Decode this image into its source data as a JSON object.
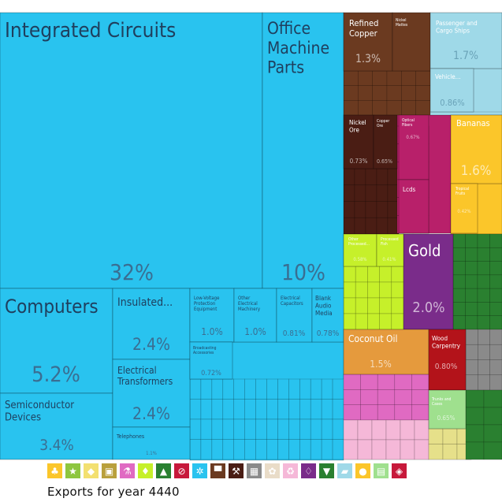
{
  "caption": "Exports for year 4440",
  "colors": {
    "machines": "#29c3ef",
    "metals": "#6b3a20",
    "transportation": "#9fd9e8",
    "minerals": "#4a1d14",
    "instruments": "#b8206a",
    "vegetable_products": "#fbc62a",
    "plastics": "#c6f02a",
    "precious_metals": "#7a2c8a",
    "animal_hides": "#2a8030",
    "foodstuffs": "#e59a3d",
    "wood_products": "#b3131a",
    "stone_and_glass": "#8a8a8a",
    "chemicals": "#e06ac2",
    "textiles": "#9fe08e",
    "paper_goods": "#e6e08a",
    "animal_products": "#f5b8d8"
  },
  "chart_data": {
    "type": "treemap",
    "title": "",
    "items": [
      {
        "name": "Integrated Circuits",
        "value": 32,
        "label": "32%",
        "category": "machines"
      },
      {
        "name": "Office Machine Parts",
        "value": 10,
        "label": "10%",
        "category": "machines"
      },
      {
        "name": "Computers",
        "value": 5.2,
        "label": "5.2%",
        "category": "machines"
      },
      {
        "name": "Semiconductor Devices",
        "value": 3.4,
        "label": "3.4%",
        "category": "machines"
      },
      {
        "name": "Insulated...",
        "value": 2.4,
        "label": "2.4%",
        "category": "machines"
      },
      {
        "name": "Electrical Transformers",
        "value": 2.4,
        "label": "2.4%",
        "category": "machines"
      },
      {
        "name": "Low-Voltage Protection Equipment",
        "value": 1.0,
        "label": "1.0%",
        "category": "machines"
      },
      {
        "name": "Other Electrical Machinery",
        "value": 1.0,
        "label": "1.0%",
        "category": "machines"
      },
      {
        "name": "Electrical Capacitors",
        "value": 0.81,
        "label": "0.81%",
        "category": "machines"
      },
      {
        "name": "Blank Audio Media",
        "value": 0.78,
        "label": "0.78%",
        "category": "machines"
      },
      {
        "name": "Broadcasting Accessories",
        "value": 0.72,
        "label": "0.72%",
        "category": "machines"
      },
      {
        "name": "Telephones",
        "value": 1.1,
        "label": "1.1%",
        "category": "machines"
      },
      {
        "name": "Refined Copper",
        "value": 1.3,
        "label": "1.3%",
        "category": "metals"
      },
      {
        "name": "Nickel Mattes",
        "value": 0.5,
        "label": "",
        "category": "metals"
      },
      {
        "name": "Passenger and Cargo Ships",
        "value": 1.7,
        "label": "1.7%",
        "category": "transportation"
      },
      {
        "name": "Vehicle...",
        "value": 0.86,
        "label": "0.86%",
        "category": "transportation"
      },
      {
        "name": "Nickel Ore",
        "value": 0.73,
        "label": "0.73%",
        "category": "minerals"
      },
      {
        "name": "Copper Ore",
        "value": 0.65,
        "label": "0.65%",
        "category": "minerals"
      },
      {
        "name": "Optical Fibers",
        "value": 0.67,
        "label": "0.67%",
        "category": "instruments"
      },
      {
        "name": "Lcds",
        "value": 0.6,
        "label": "",
        "category": "instruments"
      },
      {
        "name": "Bananas",
        "value": 1.6,
        "label": "1.6%",
        "category": "vegetable_products"
      },
      {
        "name": "Tropical Fruits",
        "value": 0.42,
        "label": "0.42%",
        "category": "vegetable_products"
      },
      {
        "name": "Gold",
        "value": 2.0,
        "label": "2.0%",
        "category": "precious_metals"
      },
      {
        "name": "Other Processed...",
        "value": 0.58,
        "label": "0.58%",
        "category": "plastics"
      },
      {
        "name": "Processed Fish",
        "value": 0.41,
        "label": "0.41%",
        "category": "plastics"
      },
      {
        "name": "Coconut Oil",
        "value": 1.5,
        "label": "1.5%",
        "category": "foodstuffs"
      },
      {
        "name": "Wood Carpentry",
        "value": 0.8,
        "label": "0.80%",
        "category": "wood_products"
      },
      {
        "name": "Trunks and Cases",
        "value": 0.65,
        "label": "0.65%",
        "category": "textiles"
      }
    ]
  },
  "legend": [
    {
      "icon": "vegetable-icon",
      "glyph": "♣",
      "color": "#fbc62a"
    },
    {
      "icon": "star-icon",
      "glyph": "★",
      "color": "#8ec63f"
    },
    {
      "icon": "food-icon",
      "glyph": "◆",
      "color": "#f3e070"
    },
    {
      "icon": "machine-icon",
      "glyph": "▣",
      "color": "#b9a03c"
    },
    {
      "icon": "flask-icon",
      "glyph": "⚗",
      "color": "#e06ac2"
    },
    {
      "icon": "plastics-icon",
      "glyph": "♦",
      "color": "#c6f02a"
    },
    {
      "icon": "shoe-icon",
      "glyph": "▲",
      "color": "#2a8030"
    },
    {
      "icon": "ban-icon",
      "glyph": "⊘",
      "color": "#c7193b"
    },
    {
      "icon": "gears-icon",
      "glyph": "✲",
      "color": "#29c3ef"
    },
    {
      "icon": "anvil-icon",
      "glyph": "▀",
      "color": "#6b3a20"
    },
    {
      "icon": "pickaxe-icon",
      "glyph": "⚒",
      "color": "#4a1d14"
    },
    {
      "icon": "box-icon",
      "glyph": "▦",
      "color": "#8a8a8a"
    },
    {
      "icon": "flower-icon",
      "glyph": "✿",
      "color": "#e9dcc8"
    },
    {
      "icon": "recycle-icon",
      "glyph": "♻",
      "color": "#f5b8d8"
    },
    {
      "icon": "diamond-icon",
      "glyph": "♢",
      "color": "#7a2c8a"
    },
    {
      "icon": "shirt-icon",
      "glyph": "▼",
      "color": "#2a8030"
    },
    {
      "icon": "car-icon",
      "glyph": "▰",
      "color": "#9fd9e8"
    },
    {
      "icon": "gem-icon",
      "glyph": "●",
      "color": "#fbc62a"
    },
    {
      "icon": "briefcase-icon",
      "glyph": "▤",
      "color": "#9fe08e"
    },
    {
      "icon": "tag-icon",
      "glyph": "◈",
      "color": "#c7193b"
    }
  ]
}
